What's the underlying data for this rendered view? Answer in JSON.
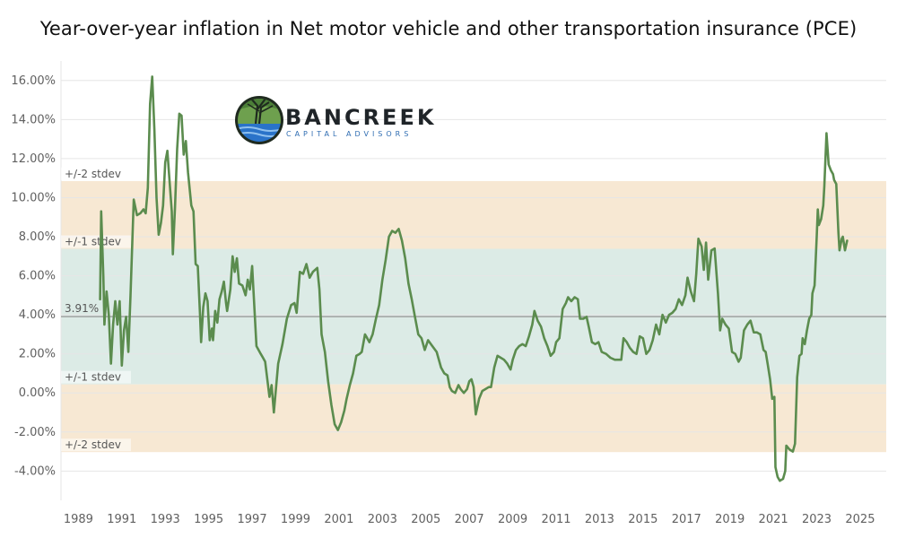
{
  "chart_data": {
    "type": "line",
    "title": "Year-over-year inflation in Net motor vehicle and other transportation insurance  (PCE)",
    "xlabel": "",
    "ylabel": "",
    "xlim": [
      1988.2,
      2026.2
    ],
    "ylim": [
      -5.5,
      17.0
    ],
    "x_ticks": [
      1989,
      1991,
      1993,
      1995,
      1997,
      1999,
      2001,
      2003,
      2005,
      2007,
      2009,
      2011,
      2013,
      2015,
      2017,
      2019,
      2021,
      2023,
      2025
    ],
    "y_ticks": [
      -4,
      -2,
      0,
      2,
      4,
      6,
      8,
      10,
      12,
      14,
      16
    ],
    "y_tick_labels": [
      "-4.00%",
      "-2.00%",
      "0.00%",
      "2.00%",
      "4.00%",
      "6.00%",
      "8.00%",
      "10.00%",
      "12.00%",
      "14.00%",
      "16.00%"
    ],
    "mean": 3.91,
    "mean_label": "3.91%",
    "bands": {
      "plus2": 10.85,
      "plus1": 7.38,
      "minus1": 0.44,
      "minus2": -3.03,
      "label_plus2": "+/-2 stdev",
      "label_plus1": "+/-1 stdev",
      "label_minus1": "+/-1 stdev",
      "label_minus2": "+/-2 stdev"
    },
    "colors": {
      "line": "#5b8c4e",
      "band_1sd": "#dcebe6",
      "band_2sd": "#f7e8d3",
      "mean_line": "#8a8a8a"
    },
    "grid": true,
    "series": [
      {
        "values": [
          [
            1990.0,
            4.8
          ],
          [
            1990.05,
            9.3
          ],
          [
            1990.15,
            6.0
          ],
          [
            1990.2,
            3.5
          ],
          [
            1990.3,
            5.2
          ],
          [
            1990.4,
            4.0
          ],
          [
            1990.5,
            1.5
          ],
          [
            1990.6,
            3.5
          ],
          [
            1990.7,
            4.7
          ],
          [
            1990.8,
            3.5
          ],
          [
            1990.9,
            4.7
          ],
          [
            1991.0,
            1.4
          ],
          [
            1991.1,
            3.2
          ],
          [
            1991.2,
            3.9
          ],
          [
            1991.3,
            2.1
          ],
          [
            1991.4,
            5.0
          ],
          [
            1991.55,
            9.9
          ],
          [
            1991.7,
            9.1
          ],
          [
            1991.85,
            9.2
          ],
          [
            1992.0,
            9.4
          ],
          [
            1992.1,
            9.2
          ],
          [
            1992.2,
            10.5
          ],
          [
            1992.3,
            14.8
          ],
          [
            1992.4,
            16.2
          ],
          [
            1992.5,
            13.5
          ],
          [
            1992.6,
            10.0
          ],
          [
            1992.7,
            8.1
          ],
          [
            1992.8,
            8.7
          ],
          [
            1992.9,
            9.6
          ],
          [
            1993.0,
            11.8
          ],
          [
            1993.1,
            12.4
          ],
          [
            1993.2,
            10.8
          ],
          [
            1993.3,
            9.3
          ],
          [
            1993.35,
            7.1
          ],
          [
            1993.45,
            9.5
          ],
          [
            1993.55,
            12.5
          ],
          [
            1993.65,
            14.3
          ],
          [
            1993.75,
            14.2
          ],
          [
            1993.85,
            12.2
          ],
          [
            1993.95,
            12.9
          ],
          [
            1994.05,
            11.3
          ],
          [
            1994.2,
            9.6
          ],
          [
            1994.3,
            9.3
          ],
          [
            1994.4,
            6.6
          ],
          [
            1994.5,
            6.5
          ],
          [
            1994.6,
            4.1
          ],
          [
            1994.65,
            2.6
          ],
          [
            1994.75,
            4.4
          ],
          [
            1994.85,
            5.1
          ],
          [
            1994.95,
            4.7
          ],
          [
            1995.05,
            2.7
          ],
          [
            1995.15,
            3.3
          ],
          [
            1995.2,
            2.7
          ],
          [
            1995.3,
            4.2
          ],
          [
            1995.4,
            3.6
          ],
          [
            1995.5,
            4.8
          ],
          [
            1995.6,
            5.2
          ],
          [
            1995.7,
            5.7
          ],
          [
            1995.8,
            4.6
          ],
          [
            1995.85,
            4.2
          ],
          [
            1996.0,
            5.3
          ],
          [
            1996.1,
            7.0
          ],
          [
            1996.2,
            6.2
          ],
          [
            1996.3,
            6.9
          ],
          [
            1996.4,
            5.6
          ],
          [
            1996.55,
            5.5
          ],
          [
            1996.7,
            5.0
          ],
          [
            1996.8,
            5.8
          ],
          [
            1996.9,
            5.3
          ],
          [
            1997.0,
            6.5
          ],
          [
            1997.2,
            2.4
          ],
          [
            1997.4,
            2.0
          ],
          [
            1997.5,
            1.8
          ],
          [
            1997.6,
            1.6
          ],
          [
            1997.7,
            0.7
          ],
          [
            1997.8,
            -0.2
          ],
          [
            1997.9,
            0.4
          ],
          [
            1998.0,
            -1.0
          ],
          [
            1998.2,
            1.5
          ],
          [
            1998.4,
            2.5
          ],
          [
            1998.6,
            3.8
          ],
          [
            1998.8,
            4.5
          ],
          [
            1998.95,
            4.6
          ],
          [
            1999.05,
            4.1
          ],
          [
            1999.2,
            6.2
          ],
          [
            1999.35,
            6.1
          ],
          [
            1999.5,
            6.6
          ],
          [
            1999.65,
            5.9
          ],
          [
            1999.8,
            6.2
          ],
          [
            2000.0,
            6.4
          ],
          [
            2000.1,
            5.3
          ],
          [
            2000.2,
            3.0
          ],
          [
            2000.35,
            2.1
          ],
          [
            2000.5,
            0.6
          ],
          [
            2000.65,
            -0.6
          ],
          [
            2000.8,
            -1.6
          ],
          [
            2000.95,
            -1.9
          ],
          [
            2001.1,
            -1.5
          ],
          [
            2001.25,
            -0.9
          ],
          [
            2001.35,
            -0.3
          ],
          [
            2001.5,
            0.4
          ],
          [
            2001.65,
            1.0
          ],
          [
            2001.8,
            1.9
          ],
          [
            2001.95,
            2.0
          ],
          [
            2002.05,
            2.1
          ],
          [
            2002.2,
            3.0
          ],
          [
            2002.3,
            2.8
          ],
          [
            2002.4,
            2.6
          ],
          [
            2002.55,
            3.0
          ],
          [
            2002.7,
            3.8
          ],
          [
            2002.85,
            4.5
          ],
          [
            2003.0,
            5.8
          ],
          [
            2003.15,
            6.8
          ],
          [
            2003.3,
            8.0
          ],
          [
            2003.45,
            8.3
          ],
          [
            2003.6,
            8.2
          ],
          [
            2003.75,
            8.4
          ],
          [
            2003.9,
            7.8
          ],
          [
            2004.05,
            6.9
          ],
          [
            2004.2,
            5.6
          ],
          [
            2004.35,
            4.8
          ],
          [
            2004.5,
            3.9
          ],
          [
            2004.65,
            3.0
          ],
          [
            2004.8,
            2.8
          ],
          [
            2004.95,
            2.2
          ],
          [
            2005.1,
            2.7
          ],
          [
            2005.3,
            2.4
          ],
          [
            2005.5,
            2.1
          ],
          [
            2005.7,
            1.3
          ],
          [
            2005.85,
            1.0
          ],
          [
            2006.0,
            0.9
          ],
          [
            2006.1,
            0.3
          ],
          [
            2006.2,
            0.1
          ],
          [
            2006.35,
            0.0
          ],
          [
            2006.5,
            0.4
          ],
          [
            2006.6,
            0.2
          ],
          [
            2006.75,
            0.0
          ],
          [
            2006.9,
            0.2
          ],
          [
            2007.0,
            0.6
          ],
          [
            2007.1,
            0.7
          ],
          [
            2007.2,
            0.3
          ],
          [
            2007.3,
            -1.1
          ],
          [
            2007.45,
            -0.3
          ],
          [
            2007.6,
            0.1
          ],
          [
            2007.75,
            0.2
          ],
          [
            2007.9,
            0.3
          ],
          [
            2008.0,
            0.3
          ],
          [
            2008.15,
            1.3
          ],
          [
            2008.3,
            1.9
          ],
          [
            2008.45,
            1.8
          ],
          [
            2008.6,
            1.7
          ],
          [
            2008.75,
            1.5
          ],
          [
            2008.9,
            1.2
          ],
          [
            2009.0,
            1.7
          ],
          [
            2009.15,
            2.2
          ],
          [
            2009.3,
            2.4
          ],
          [
            2009.45,
            2.5
          ],
          [
            2009.6,
            2.4
          ],
          [
            2009.75,
            2.9
          ],
          [
            2009.9,
            3.5
          ],
          [
            2010.0,
            4.2
          ],
          [
            2010.15,
            3.7
          ],
          [
            2010.3,
            3.4
          ],
          [
            2010.45,
            2.8
          ],
          [
            2010.6,
            2.4
          ],
          [
            2010.75,
            1.9
          ],
          [
            2010.9,
            2.1
          ],
          [
            2011.0,
            2.6
          ],
          [
            2011.15,
            2.8
          ],
          [
            2011.3,
            4.3
          ],
          [
            2011.45,
            4.6
          ],
          [
            2011.55,
            4.9
          ],
          [
            2011.7,
            4.7
          ],
          [
            2011.85,
            4.9
          ],
          [
            2012.0,
            4.8
          ],
          [
            2012.1,
            3.8
          ],
          [
            2012.25,
            3.8
          ],
          [
            2012.4,
            3.9
          ],
          [
            2012.5,
            3.4
          ],
          [
            2012.65,
            2.6
          ],
          [
            2012.8,
            2.5
          ],
          [
            2012.95,
            2.6
          ],
          [
            2013.1,
            2.1
          ],
          [
            2013.3,
            2.0
          ],
          [
            2013.5,
            1.8
          ],
          [
            2013.7,
            1.7
          ],
          [
            2013.85,
            1.7
          ],
          [
            2014.0,
            1.7
          ],
          [
            2014.1,
            2.8
          ],
          [
            2014.25,
            2.6
          ],
          [
            2014.4,
            2.3
          ],
          [
            2014.55,
            2.1
          ],
          [
            2014.7,
            2.0
          ],
          [
            2014.85,
            2.9
          ],
          [
            2015.0,
            2.8
          ],
          [
            2015.15,
            2.0
          ],
          [
            2015.3,
            2.2
          ],
          [
            2015.45,
            2.7
          ],
          [
            2015.6,
            3.5
          ],
          [
            2015.75,
            3.0
          ],
          [
            2015.9,
            4.0
          ],
          [
            2016.05,
            3.6
          ],
          [
            2016.2,
            4.0
          ],
          [
            2016.35,
            4.1
          ],
          [
            2016.5,
            4.3
          ],
          [
            2016.65,
            4.8
          ],
          [
            2016.8,
            4.5
          ],
          [
            2016.95,
            5.0
          ],
          [
            2017.05,
            5.9
          ],
          [
            2017.2,
            5.2
          ],
          [
            2017.35,
            4.7
          ],
          [
            2017.45,
            6.1
          ],
          [
            2017.55,
            7.9
          ],
          [
            2017.7,
            7.5
          ],
          [
            2017.8,
            6.3
          ],
          [
            2017.9,
            7.7
          ],
          [
            2018.0,
            5.8
          ],
          [
            2018.15,
            7.3
          ],
          [
            2018.3,
            7.4
          ],
          [
            2018.45,
            5.1
          ],
          [
            2018.55,
            3.2
          ],
          [
            2018.65,
            3.8
          ],
          [
            2018.8,
            3.5
          ],
          [
            2018.95,
            3.3
          ],
          [
            2019.1,
            2.1
          ],
          [
            2019.25,
            2.0
          ],
          [
            2019.4,
            1.6
          ],
          [
            2019.5,
            1.8
          ],
          [
            2019.65,
            3.2
          ],
          [
            2019.8,
            3.5
          ],
          [
            2019.95,
            3.7
          ],
          [
            2020.1,
            3.1
          ],
          [
            2020.25,
            3.1
          ],
          [
            2020.4,
            3.0
          ],
          [
            2020.55,
            2.2
          ],
          [
            2020.65,
            2.1
          ],
          [
            2020.75,
            1.4
          ],
          [
            2020.85,
            0.7
          ],
          [
            2020.95,
            -0.3
          ],
          [
            2021.05,
            -0.2
          ],
          [
            2021.1,
            -3.8
          ],
          [
            2021.2,
            -4.3
          ],
          [
            2021.3,
            -4.5
          ],
          [
            2021.45,
            -4.4
          ],
          [
            2021.55,
            -4.0
          ],
          [
            2021.6,
            -2.7
          ],
          [
            2021.75,
            -2.9
          ],
          [
            2021.9,
            -3.0
          ],
          [
            2022.0,
            -2.6
          ],
          [
            2022.1,
            0.8
          ],
          [
            2022.2,
            1.9
          ],
          [
            2022.3,
            2.0
          ],
          [
            2022.35,
            2.8
          ],
          [
            2022.45,
            2.5
          ],
          [
            2022.55,
            3.2
          ],
          [
            2022.65,
            3.8
          ],
          [
            2022.75,
            4.0
          ],
          [
            2022.8,
            5.1
          ],
          [
            2022.9,
            5.5
          ],
          [
            2023.0,
            8.0
          ],
          [
            2023.05,
            9.4
          ],
          [
            2023.1,
            8.6
          ],
          [
            2023.2,
            8.9
          ],
          [
            2023.3,
            9.6
          ],
          [
            2023.35,
            10.6
          ],
          [
            2023.45,
            13.3
          ],
          [
            2023.55,
            11.7
          ],
          [
            2023.65,
            11.4
          ],
          [
            2023.75,
            11.2
          ],
          [
            2023.8,
            10.9
          ],
          [
            2023.9,
            10.7
          ],
          [
            2024.0,
            8.2
          ],
          [
            2024.05,
            7.3
          ],
          [
            2024.15,
            7.9
          ],
          [
            2024.2,
            8.0
          ],
          [
            2024.3,
            7.3
          ],
          [
            2024.4,
            7.8
          ]
        ]
      }
    ]
  },
  "logo": {
    "name": "BANCREEK",
    "tagline": "CAPITAL ADVISORS",
    "icon": "tree-river-logo-icon"
  }
}
